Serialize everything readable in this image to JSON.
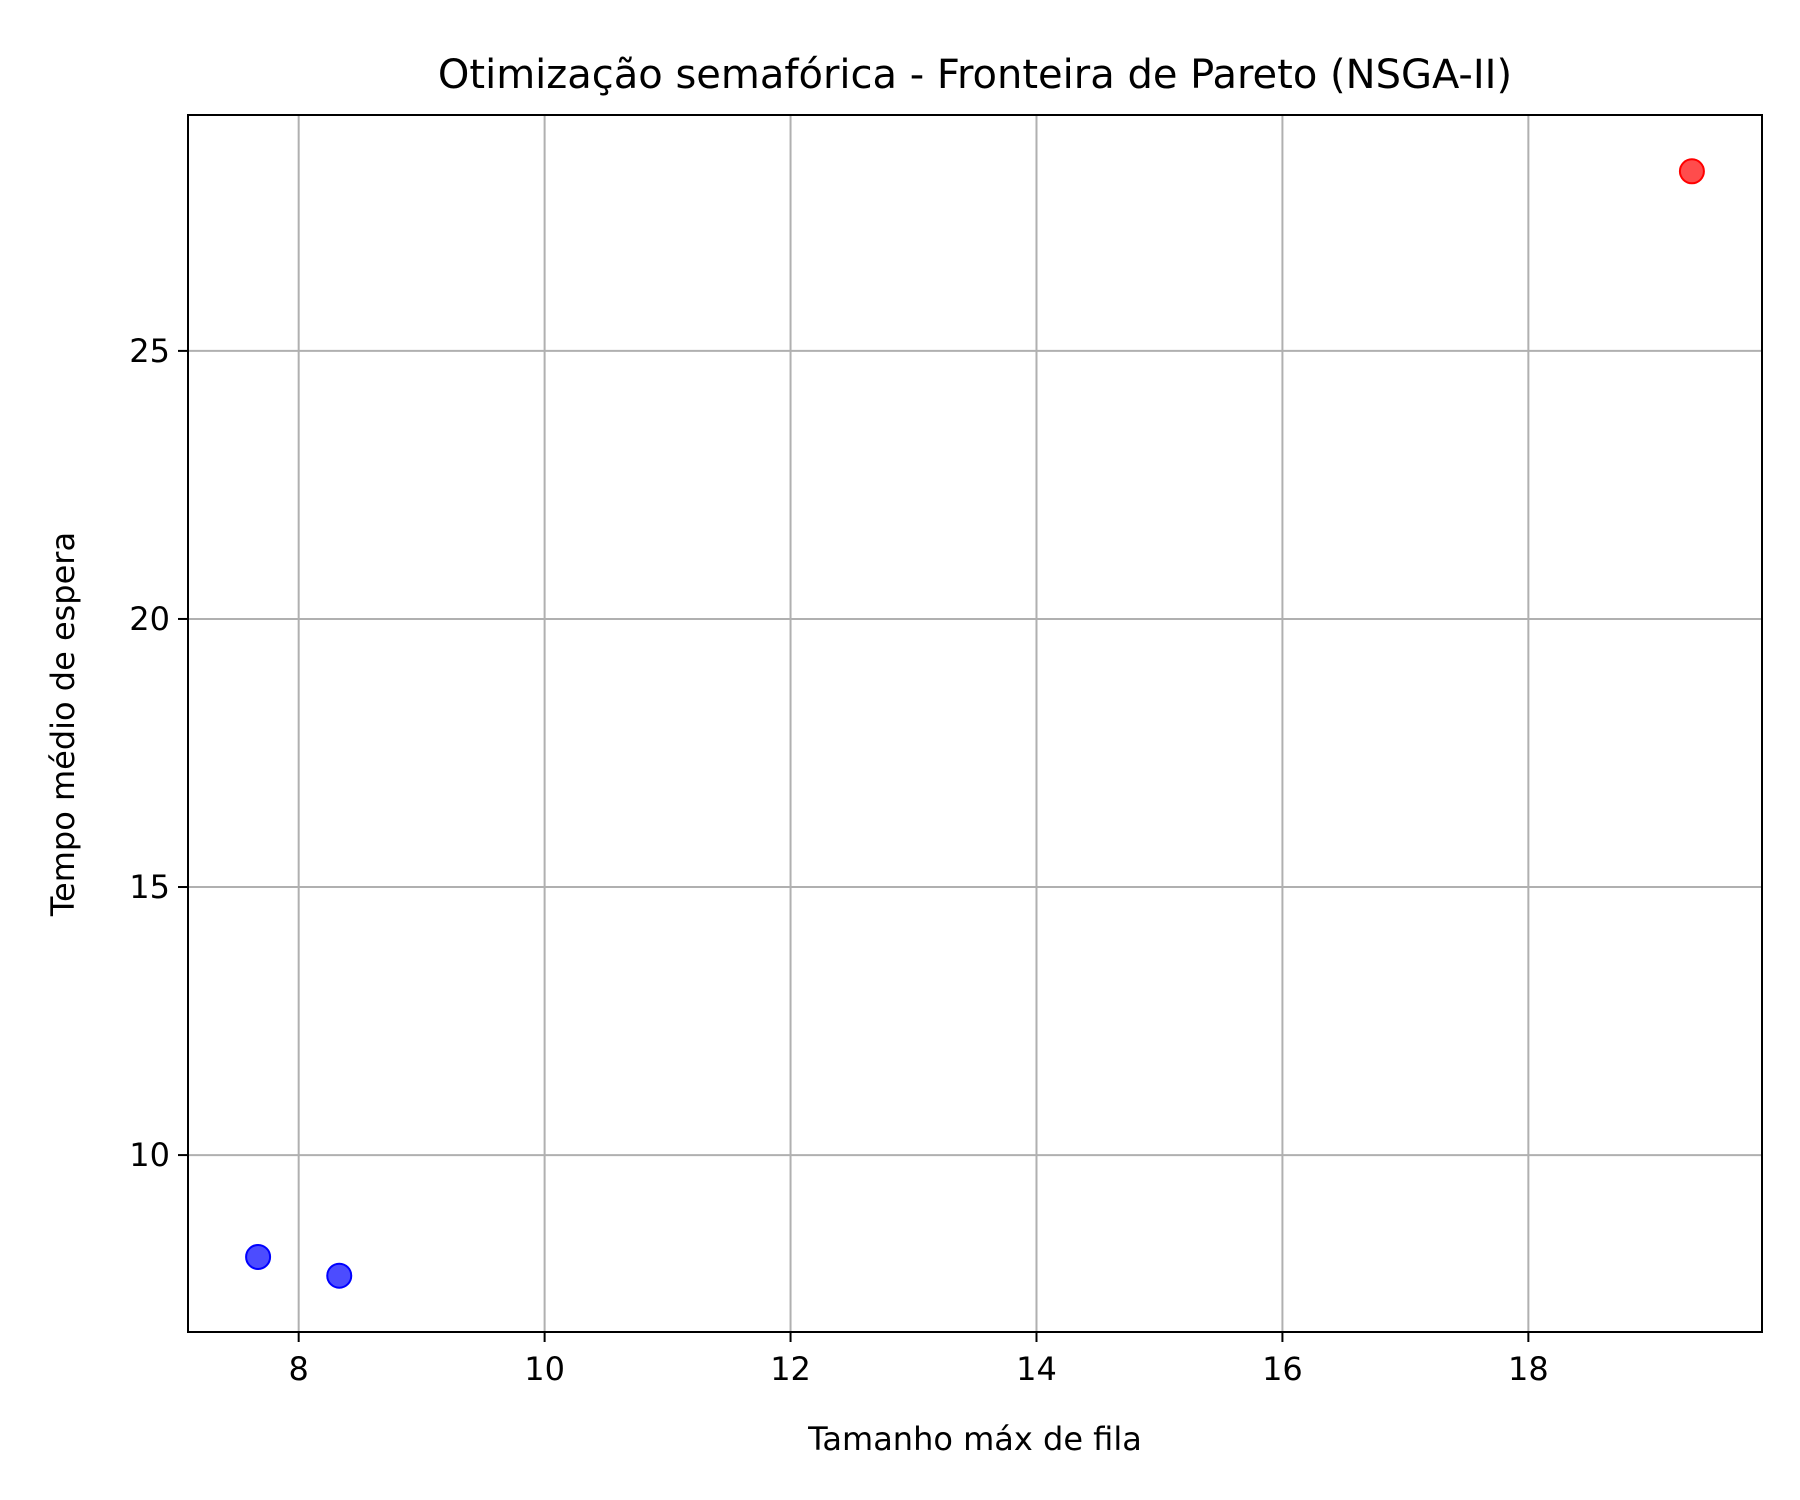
{
  "chart_data": {
    "type": "scatter",
    "title": "Otimização semafórica - Fronteira de Pareto (NSGA-II)",
    "xlabel": "Tamanho máx de fila",
    "ylabel": "Tempo médio de espera",
    "xlim": [
      7.1,
      19.9
    ],
    "ylim": [
      6.7,
      29.4
    ],
    "xticks": [
      8,
      10,
      12,
      14,
      16,
      18
    ],
    "yticks": [
      10,
      15,
      20,
      25
    ],
    "grid": true,
    "points": [
      {
        "x": 7.67,
        "y": 8.1,
        "color": "#0000ff"
      },
      {
        "x": 8.33,
        "y": 7.75,
        "color": "#0000ff"
      },
      {
        "x": 19.33,
        "y": 28.35,
        "color": "#ff0000"
      }
    ]
  }
}
